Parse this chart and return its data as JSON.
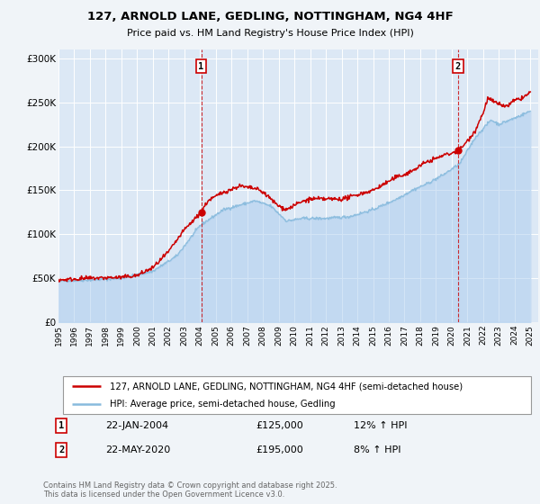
{
  "title": "127, ARNOLD LANE, GEDLING, NOTTINGHAM, NG4 4HF",
  "subtitle": "Price paid vs. HM Land Registry's House Price Index (HPI)",
  "background_color": "#f0f4f8",
  "plot_bg_color": "#dce8f5",
  "red_line_label": "127, ARNOLD LANE, GEDLING, NOTTINGHAM, NG4 4HF (semi-detached house)",
  "blue_line_label": "HPI: Average price, semi-detached house, Gedling",
  "marker1_date": "22-JAN-2004",
  "marker1_price": "£125,000",
  "marker1_hpi": "12% ↑ HPI",
  "marker2_date": "22-MAY-2020",
  "marker2_price": "£195,000",
  "marker2_hpi": "8% ↑ HPI",
  "footnote": "Contains HM Land Registry data © Crown copyright and database right 2025.\nThis data is licensed under the Open Government Licence v3.0.",
  "xmin": 1995.0,
  "xmax": 2025.5,
  "ymin": 0,
  "ymax": 310000,
  "vline1_x": 2004.07,
  "vline2_x": 2020.4,
  "marker1_x": 2004.07,
  "marker1_y": 125000,
  "marker2_x": 2020.4,
  "marker2_y": 195000,
  "yticks": [
    0,
    50000,
    100000,
    150000,
    200000,
    250000,
    300000
  ],
  "ytick_labels": [
    "£0",
    "£50K",
    "£100K",
    "£150K",
    "£200K",
    "£250K",
    "£300K"
  ],
  "xticks": [
    1995,
    1996,
    1997,
    1998,
    1999,
    2000,
    2001,
    2002,
    2003,
    2004,
    2005,
    2006,
    2007,
    2008,
    2009,
    2010,
    2011,
    2012,
    2013,
    2014,
    2015,
    2016,
    2017,
    2018,
    2019,
    2020,
    2021,
    2022,
    2023,
    2024,
    2025
  ],
  "red_color": "#cc0000",
  "blue_color": "#88bbdd",
  "blue_fill_color": "#aaccee"
}
